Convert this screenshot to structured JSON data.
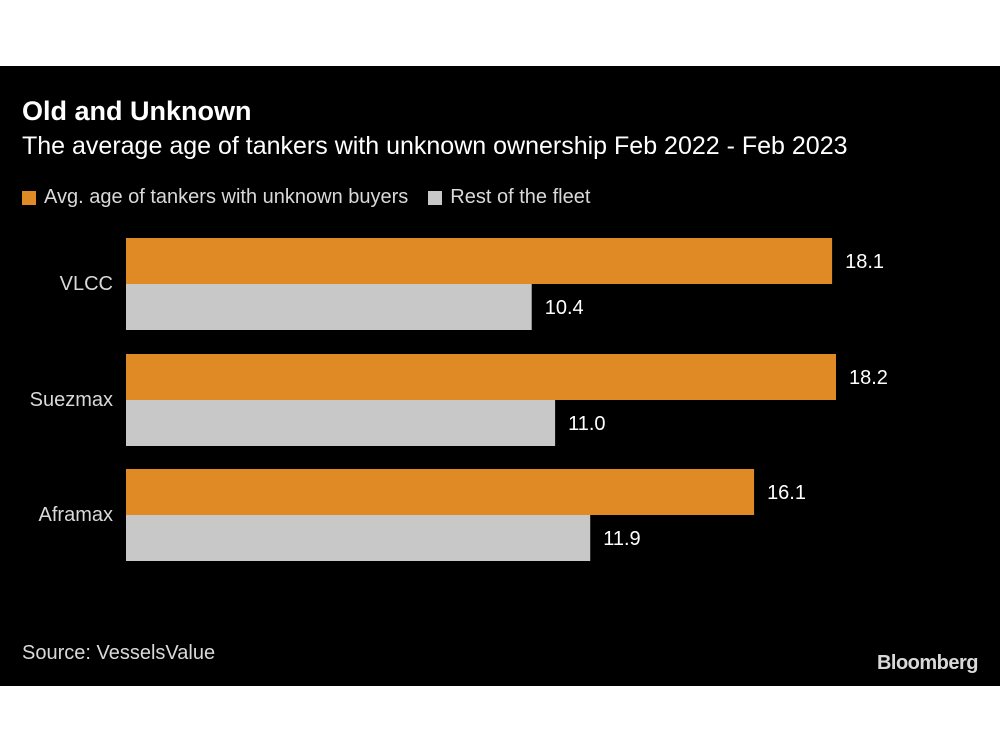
{
  "chart_data": {
    "type": "bar",
    "orientation": "horizontal",
    "title": "Old and Unknown",
    "subtitle": "The average age of tankers with unknown ownership Feb 2022 - Feb 2023",
    "categories": [
      "VLCC",
      "Suezmax",
      "Aframax"
    ],
    "series": [
      {
        "name": "Avg. age of tankers with unknown buyers",
        "values": [
          18.1,
          18.2,
          16.1
        ],
        "color": "#e08a26"
      },
      {
        "name": "Rest of the fleet",
        "values": [
          10.4,
          11.0,
          11.9
        ],
        "color": "#c8c8c8"
      }
    ],
    "data_labels": [
      [
        "18.1",
        "18.2",
        "16.1"
      ],
      [
        "10.4",
        "11.0",
        "11.9"
      ]
    ],
    "xlim": [
      0,
      18.2
    ],
    "grid": false,
    "legend_position": "top-left"
  },
  "source": "Source: VesselsValue",
  "brand": "Bloomberg"
}
